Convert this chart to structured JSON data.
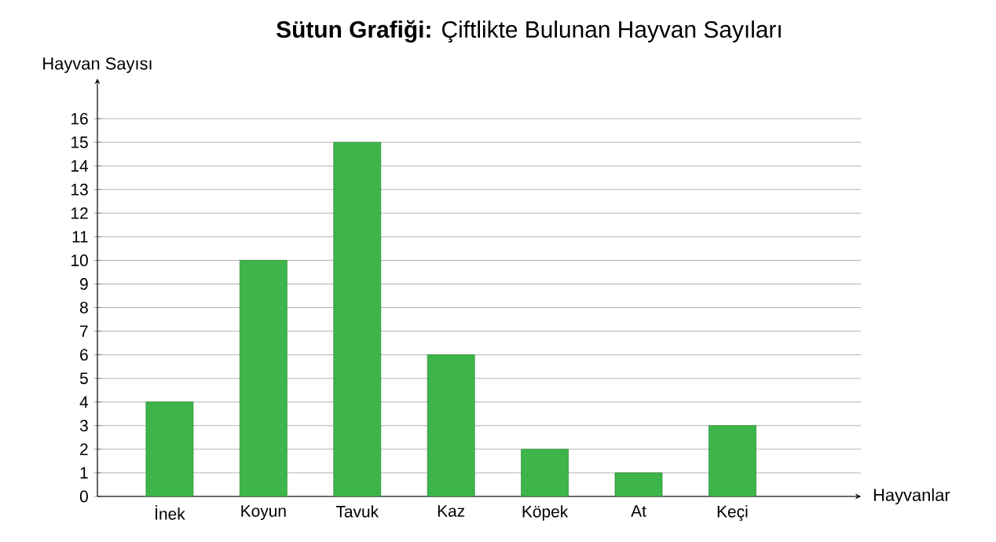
{
  "chart_data": {
    "type": "bar",
    "title": "**Sütun Grafiği:** Çiftlikte Bulunan Hayvan Sayıları",
    "xlabel": "Hayvanlar",
    "ylabel": "Hayvan Sayısı",
    "categories": [
      "İnek",
      "Koyun",
      "Tavuk",
      "Kaz",
      "Köpek",
      "At",
      "Keçi"
    ],
    "values": [
      4,
      10,
      15,
      6,
      2,
      1,
      3
    ],
    "color": "#3db54a",
    "ylim": [
      0,
      17.7
    ],
    "yticks": [
      0,
      1,
      2,
      3,
      4,
      5,
      6,
      7,
      8,
      9,
      10,
      11,
      12,
      13,
      14,
      15,
      16
    ],
    "grid": "y"
  }
}
